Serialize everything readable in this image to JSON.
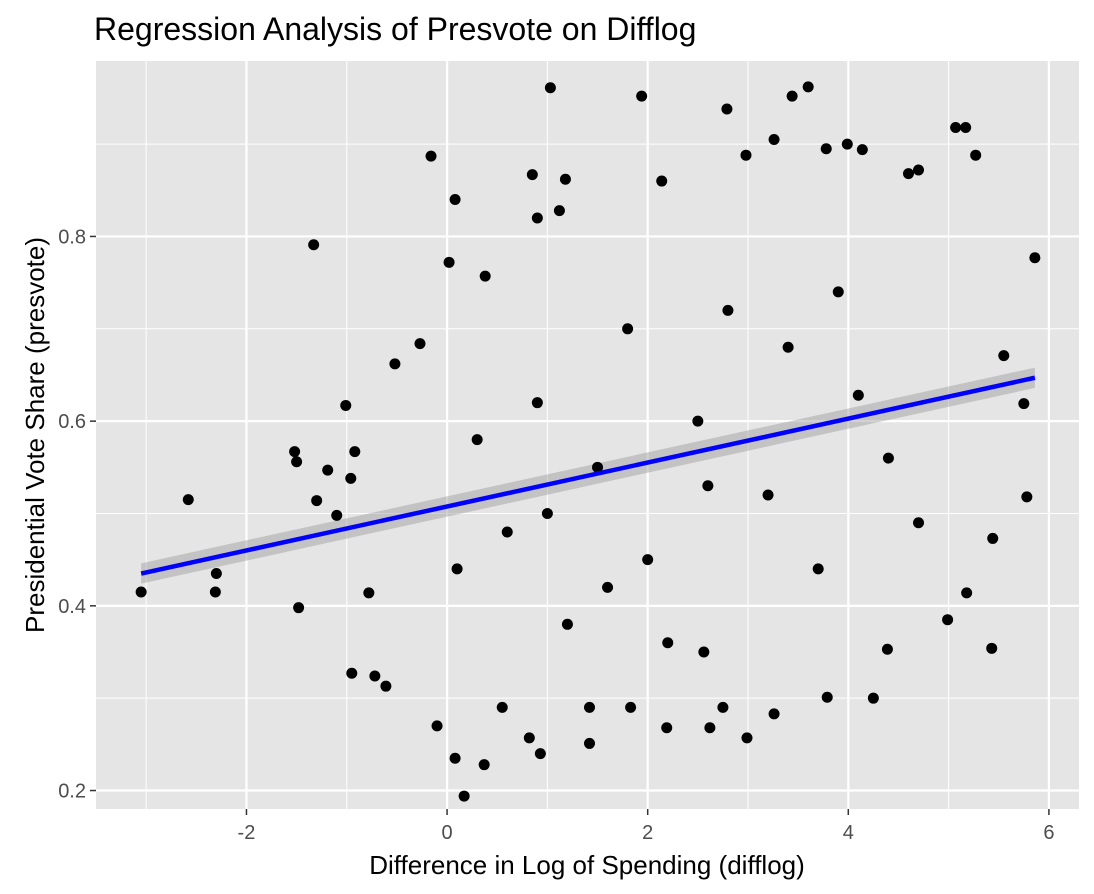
{
  "chart_data": {
    "type": "scatter",
    "title": "Regression Analysis of Presvote on Difflog",
    "xlabel": "Difference in Log of Spending (difflog)",
    "ylabel": "Presidential Vote Share (presvote)",
    "xlim": [
      -3.5,
      6.3
    ],
    "ylim": [
      0.18,
      0.99
    ],
    "x_ticks": [
      -2,
      0,
      2,
      4,
      6
    ],
    "y_ticks": [
      0.2,
      0.4,
      0.6,
      0.8
    ],
    "x_tick_labels": [
      "-2",
      "0",
      "2",
      "4",
      "6"
    ],
    "y_tick_labels": [
      "0.2",
      "0.4",
      "0.6",
      "0.8"
    ],
    "grid": true,
    "legend": "none",
    "colors": {
      "panel": "#e5e5e5",
      "grid": "#ffffff",
      "points": "#000000",
      "fit_line": "#0000ff",
      "confidence_band": "#999999"
    },
    "series": [
      {
        "type": "scatter",
        "points": [
          [
            -3.05,
            0.415
          ],
          [
            -2.58,
            0.515
          ],
          [
            -2.3,
            0.435
          ],
          [
            -2.31,
            0.415
          ],
          [
            -1.52,
            0.567
          ],
          [
            -1.5,
            0.556
          ],
          [
            -1.48,
            0.398
          ],
          [
            -1.33,
            0.791
          ],
          [
            -1.3,
            0.514
          ],
          [
            -1.19,
            0.547
          ],
          [
            -1.1,
            0.498
          ],
          [
            -1.01,
            0.617
          ],
          [
            -0.96,
            0.538
          ],
          [
            -0.95,
            0.327
          ],
          [
            -0.92,
            0.567
          ],
          [
            -0.78,
            0.414
          ],
          [
            -0.72,
            0.324
          ],
          [
            -0.61,
            0.313
          ],
          [
            -0.52,
            0.662
          ],
          [
            -0.27,
            0.684
          ],
          [
            -0.16,
            0.887
          ],
          [
            -0.1,
            0.27
          ],
          [
            0.02,
            0.772
          ],
          [
            0.08,
            0.235
          ],
          [
            0.08,
            0.84
          ],
          [
            0.37,
            0.228
          ],
          [
            0.38,
            0.757
          ],
          [
            0.17,
            0.194
          ],
          [
            0.55,
            0.29
          ],
          [
            1.03,
            0.961
          ],
          [
            0.9,
            0.82
          ],
          [
            1.12,
            0.828
          ],
          [
            1.18,
            0.862
          ],
          [
            0.85,
            0.867
          ],
          [
            0.93,
            0.24
          ],
          [
            0.82,
            0.257
          ],
          [
            1.42,
            0.251
          ],
          [
            1.42,
            0.29
          ],
          [
            1.83,
            0.29
          ],
          [
            1.94,
            0.952
          ],
          [
            2.14,
            0.86
          ],
          [
            2.19,
            0.268
          ],
          [
            2.56,
            0.35
          ],
          [
            2.62,
            0.268
          ],
          [
            2.79,
            0.938
          ],
          [
            2.75,
            0.29
          ],
          [
            2.99,
            0.257
          ],
          [
            2.98,
            0.888
          ],
          [
            3.26,
            0.283
          ],
          [
            3.26,
            0.905
          ],
          [
            3.44,
            0.952
          ],
          [
            3.6,
            0.962
          ],
          [
            3.78,
            0.895
          ],
          [
            3.79,
            0.301
          ],
          [
            3.99,
            0.9
          ],
          [
            4.14,
            0.894
          ],
          [
            4.25,
            0.3
          ],
          [
            4.39,
            0.353
          ],
          [
            4.6,
            0.868
          ],
          [
            4.7,
            0.872
          ],
          [
            4.99,
            0.385
          ],
          [
            5.07,
            0.918
          ],
          [
            5.17,
            0.918
          ],
          [
            5.27,
            0.888
          ],
          [
            5.18,
            0.414
          ],
          [
            5.43,
            0.354
          ],
          [
            5.75,
            0.619
          ],
          [
            5.78,
            0.518
          ],
          [
            5.86,
            0.777
          ],
          [
            5.55,
            0.671
          ],
          [
            5.44,
            0.473
          ],
          [
            4.1,
            0.628
          ],
          [
            2.5,
            0.6
          ],
          [
            1.5,
            0.55
          ],
          [
            0.6,
            0.48
          ],
          [
            3.2,
            0.52
          ],
          [
            2.0,
            0.45
          ],
          [
            0.9,
            0.62
          ],
          [
            3.7,
            0.44
          ],
          [
            1.2,
            0.38
          ],
          [
            4.4,
            0.56
          ],
          [
            2.8,
            0.72
          ],
          [
            0.3,
            0.58
          ],
          [
            1.8,
            0.7
          ],
          [
            3.4,
            0.68
          ],
          [
            2.2,
            0.36
          ],
          [
            4.7,
            0.49
          ],
          [
            1.0,
            0.5
          ],
          [
            0.1,
            0.44
          ],
          [
            2.6,
            0.53
          ],
          [
            3.9,
            0.74
          ],
          [
            1.6,
            0.42
          ]
        ]
      },
      {
        "type": "line",
        "name": "",
        "method": "lm",
        "x": [
          -3.05,
          5.86
        ],
        "y": [
          0.435,
          0.647
        ],
        "ci_lower": [
          0.424,
          0.636
        ],
        "ci_upper": [
          0.446,
          0.658
        ]
      }
    ]
  }
}
